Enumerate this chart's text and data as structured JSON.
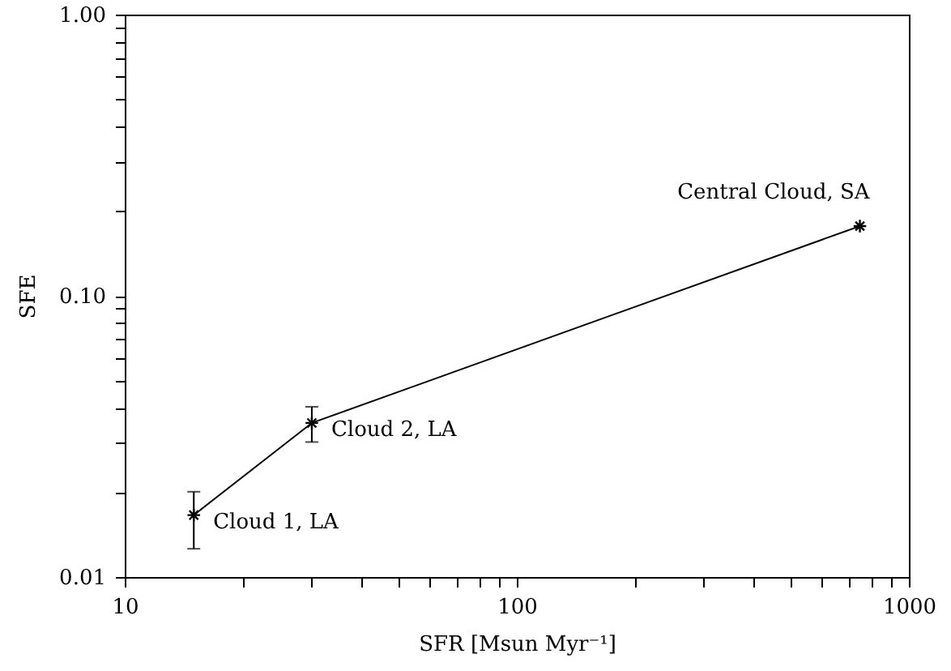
{
  "chart_data": {
    "type": "line",
    "xlabel": "SFR [Msun Myr⁻¹]",
    "ylabel": "SFE",
    "x": [
      15,
      30,
      750
    ],
    "series": [
      {
        "color": "#000000",
        "values": [
          0.0166,
          0.0353,
          0.177
        ],
        "errors": [
          [
            0.0126,
            0.0201
          ],
          [
            0.0302,
            0.0403
          ],
          null
        ]
      }
    ],
    "log": "xy",
    "marker": "cross",
    "line_style": "solid",
    "grid": false,
    "xlim": [
      10,
      1000
    ],
    "ylim": [
      0.01,
      1.0
    ],
    "xticks": [
      10,
      {
        "value": 20,
        "label": null
      },
      {
        "value": 30,
        "label": null
      },
      {
        "value": 40,
        "label": null
      },
      {
        "value": 50,
        "label": null
      },
      {
        "value": 60,
        "label": null
      },
      {
        "value": 70,
        "label": null
      },
      {
        "value": 80,
        "label": null
      },
      {
        "value": 90,
        "label": null
      },
      100,
      {
        "value": 200,
        "label": null
      },
      {
        "value": 300,
        "label": null
      },
      {
        "value": 400,
        "label": null
      },
      {
        "value": 500,
        "label": null
      },
      {
        "value": 600,
        "label": null
      },
      {
        "value": 700,
        "label": null
      },
      {
        "value": 800,
        "label": null
      },
      {
        "value": 900,
        "label": null
      },
      1000
    ],
    "yticks": [
      {
        "value": 0.01,
        "label": "0.01"
      },
      {
        "value": 0.02,
        "label": null
      },
      {
        "value": 0.03,
        "label": null
      },
      {
        "value": 0.04,
        "label": null
      },
      {
        "value": 0.05,
        "label": null
      },
      {
        "value": 0.06,
        "label": null
      },
      {
        "value": 0.07,
        "label": null
      },
      {
        "value": 0.08,
        "label": null
      },
      {
        "value": 0.09,
        "label": null
      },
      {
        "value": 0.1,
        "label": "0.10"
      },
      {
        "value": 0.2,
        "label": null
      },
      {
        "value": 0.3,
        "label": null
      },
      {
        "value": 0.4,
        "label": null
      },
      {
        "value": 0.5,
        "label": null
      },
      {
        "value": 0.6,
        "label": null
      },
      {
        "value": 0.7,
        "label": null
      },
      {
        "value": 0.8,
        "label": null
      },
      {
        "value": 0.9,
        "label": null
      },
      {
        "value": 1.0,
        "label": "1.00"
      }
    ],
    "annotations": [
      {
        "text": "Cloud 1, LA",
        "x": 15,
        "y": 0.0166
      },
      {
        "text": "Cloud 2, LA",
        "x": 30,
        "y": 0.0353
      },
      {
        "text": "Central Cloud, SA",
        "x": 750,
        "y": 0.177
      }
    ]
  }
}
